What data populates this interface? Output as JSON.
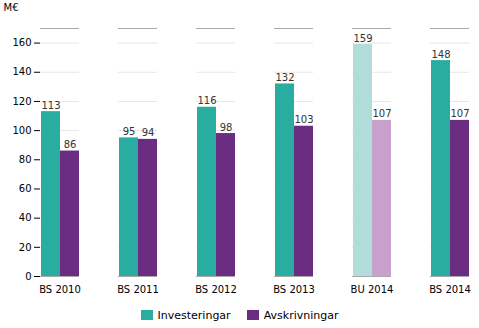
{
  "chart_data": {
    "type": "bar",
    "categories": [
      "BS 2010",
      "BS 2011",
      "BS 2012",
      "BS 2013",
      "BU 2014",
      "BS 2014"
    ],
    "series": [
      {
        "name": "Investeringar",
        "color": "#2aada1",
        "colors": [
          "#2aada1",
          "#2aada1",
          "#2aada1",
          "#2aada1",
          "#b0ddd9",
          "#2aada1"
        ],
        "values": [
          113,
          95,
          116,
          132,
          159,
          148
        ]
      },
      {
        "name": "Avskrivningar",
        "color": "#6b2d82",
        "colors": [
          "#6b2d82",
          "#6b2d82",
          "#6b2d82",
          "#6b2d82",
          "#c9a0cc",
          "#6b2d82"
        ],
        "values": [
          86,
          94,
          98,
          103,
          107,
          107
        ]
      }
    ],
    "ylabel": "M€",
    "ylim": [
      0,
      170
    ],
    "yticks": [
      0,
      20,
      40,
      60,
      80,
      100,
      120,
      140,
      160
    ],
    "grid": true,
    "data_labels": true,
    "legend": "bottom"
  }
}
